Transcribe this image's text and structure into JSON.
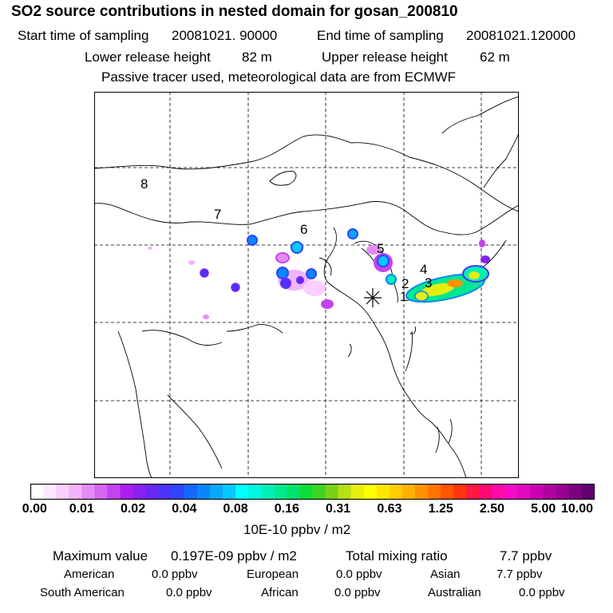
{
  "title": "SO2 source contributions in nested domain for gosan_200810",
  "header": {
    "start_label": "Start time of sampling",
    "start_value": "20081021. 90000",
    "end_label": "End time of sampling",
    "end_value": "20081021.120000",
    "lower_label": "Lower release height",
    "lower_value": "82 m",
    "upper_label": "Upper release height",
    "upper_value": "62 m",
    "note": "Passive tracer used, meteorological data are from ECMWF"
  },
  "map": {
    "region_labels": [
      "1",
      "2",
      "3",
      "4",
      "5",
      "6",
      "7",
      "8"
    ],
    "receptor_marker": "asterisk"
  },
  "colorbar": {
    "ticks": [
      "0.00",
      "0.01",
      "0.02",
      "0.04",
      "0.08",
      "0.16",
      "0.31",
      "0.63",
      "1.25",
      "2.50",
      "5.00",
      "10.00"
    ],
    "units": "10E-10 ppbv / m2",
    "colors": [
      "#ffffff",
      "#fde9ff",
      "#f8d0fd",
      "#f2b4fb",
      "#e48cf6",
      "#d467f3",
      "#c443ef",
      "#ad1ef0",
      "#8a20f2",
      "#6a28f5",
      "#4b33f8",
      "#2f45fb",
      "#1468fd",
      "#0a86fd",
      "#08a8fd",
      "#07c8fd",
      "#00ffff",
      "#00f7df",
      "#00f0b8",
      "#00e890",
      "#00e36a",
      "#10dc3c",
      "#3ed420",
      "#78d218",
      "#b6e014",
      "#e6ee10",
      "#ffff00",
      "#ffe600",
      "#ffcc00",
      "#ffb000",
      "#ff9200",
      "#ff7400",
      "#ff5400",
      "#ff3410",
      "#ff1840",
      "#ff0878",
      "#ff0aa8",
      "#f50cc8",
      "#e008c0",
      "#c800b0",
      "#b000a0",
      "#960090",
      "#7c0080",
      "#620070"
    ]
  },
  "stats": {
    "max_label": "Maximum value",
    "max_value": "0.197E-09 ppbv / m2",
    "total_label": "Total mixing ratio",
    "total_value": "7.7 ppbv"
  },
  "regions": [
    {
      "name": "American",
      "value": "0.0 ppbv"
    },
    {
      "name": "European",
      "value": "0.0 ppbv"
    },
    {
      "name": "Asian",
      "value": "7.7 ppbv"
    },
    {
      "name": "South American",
      "value": "0.0 ppbv"
    },
    {
      "name": "African",
      "value": "0.0 ppbv"
    },
    {
      "name": "Australian",
      "value": "0.0 ppbv"
    }
  ]
}
